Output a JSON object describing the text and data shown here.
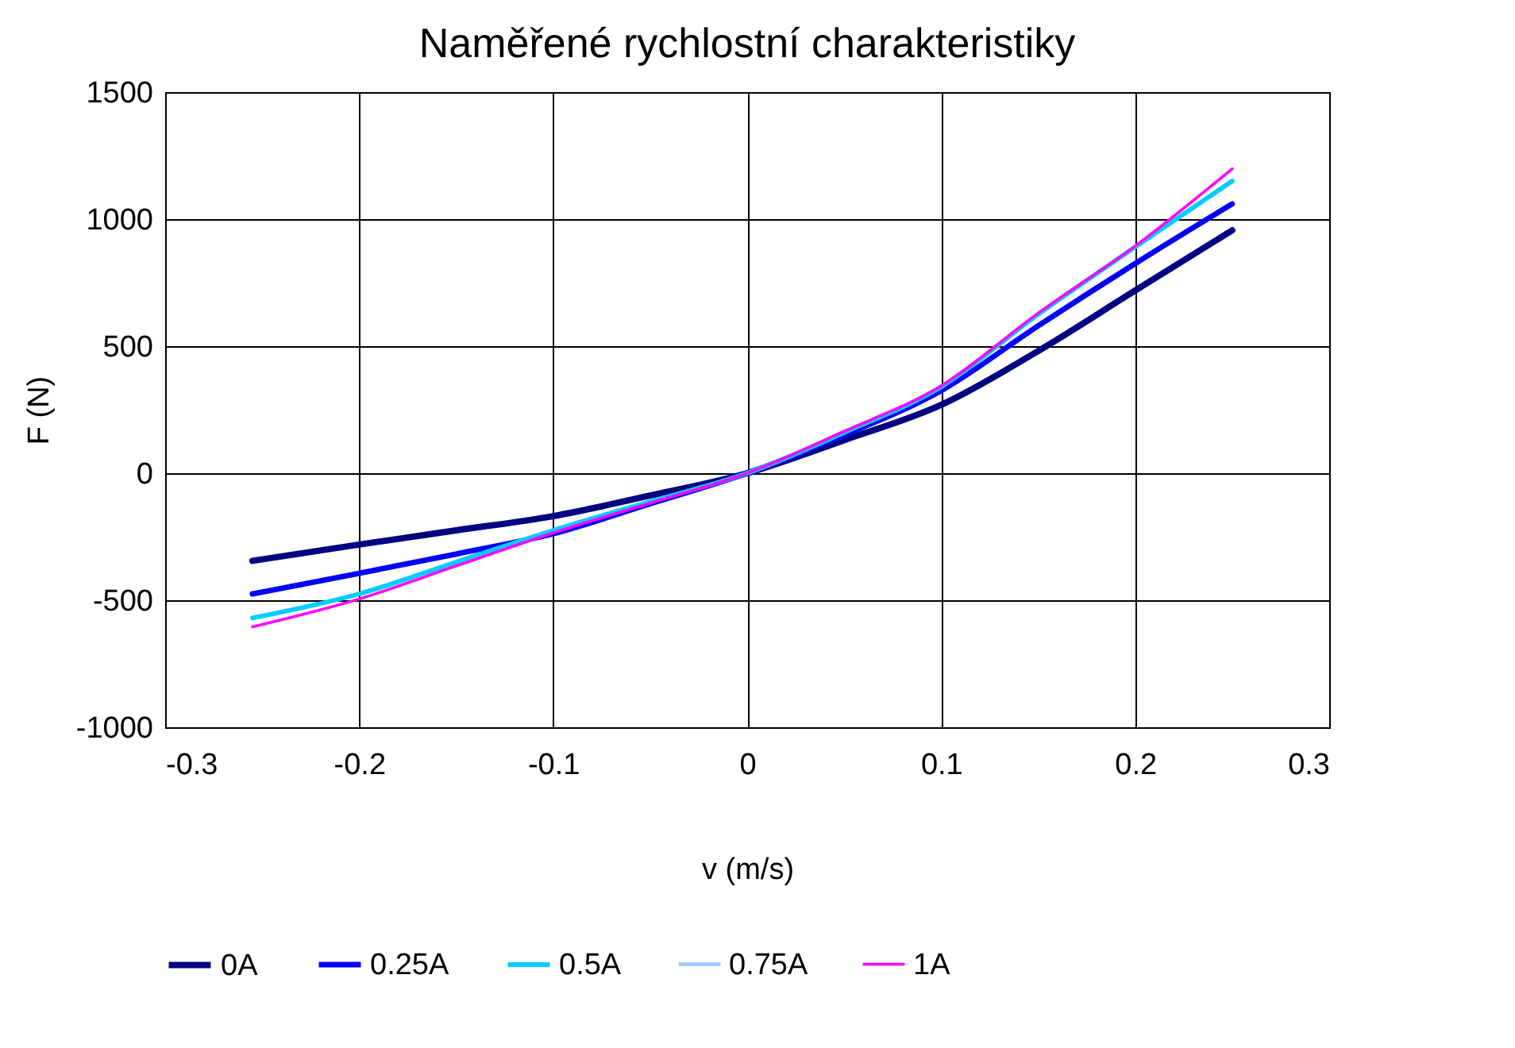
{
  "chart_data": {
    "type": "line",
    "title": "Naměřené rychlostní charakteristiky",
    "xlabel": "v (m/s)",
    "ylabel": "F (N)",
    "x": [
      -0.255,
      -0.2,
      -0.15,
      -0.1,
      -0.05,
      0,
      0.05,
      0.1,
      0.15,
      0.2,
      0.25
    ],
    "series": [
      {
        "name": "0A",
        "color": "#000080",
        "values": [
          -345,
          -281,
          -225,
          -169,
          -88,
          0,
          130,
          269,
          481,
          719,
          956
        ]
      },
      {
        "name": "0.25A",
        "color": "#0000ff",
        "values": [
          -475,
          -394,
          -318,
          -238,
          -120,
          0,
          150,
          325,
          580,
          825,
          1060
        ]
      },
      {
        "name": "0.5A",
        "color": "#00ccff",
        "values": [
          -570,
          -475,
          -350,
          -225,
          -112,
          0,
          160,
          340,
          625,
          890,
          1150
        ]
      },
      {
        "name": "0.75A",
        "color": "#99ccff",
        "values": [
          null,
          null,
          null,
          null,
          null,
          null,
          null,
          null,
          null,
          null,
          null
        ]
      },
      {
        "name": "1A",
        "color": "#ff00ff",
        "values": [
          -605,
          -495,
          -365,
          -235,
          -118,
          0,
          165,
          344,
          630,
          894,
          1198
        ]
      }
    ],
    "xlim": [
      -0.3,
      0.3
    ],
    "xticks": [
      -0.3,
      -0.2,
      -0.1,
      0,
      0.1,
      0.2,
      0.3
    ],
    "ylim": [
      -1000,
      1500
    ],
    "yticks": [
      -1000,
      -500,
      0,
      500,
      1000,
      1500
    ],
    "grid": true,
    "legend": "bottom",
    "marker": "none",
    "line_style": "solid"
  }
}
